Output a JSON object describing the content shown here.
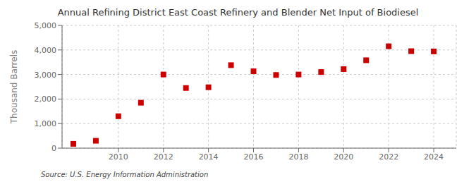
{
  "chart_data": {
    "type": "scatter",
    "title": "Annual Refining District East Coast Refinery and Blender Net Input of Biodiesel",
    "y_label": "Thousand Barrels",
    "annotations": [
      "Source: U.S. Energy Information Administration"
    ],
    "x": [
      2008,
      2009,
      2010,
      2011,
      2012,
      2013,
      2014,
      2015,
      2016,
      2017,
      2018,
      2019,
      2020,
      2021,
      2022,
      2023,
      2024
    ],
    "values": [
      175,
      300,
      1300,
      1850,
      3000,
      2450,
      2480,
      3380,
      3130,
      2980,
      3000,
      3100,
      3220,
      3580,
      4150,
      3950,
      3940
    ],
    "color": "#cc0000",
    "marker": "square",
    "xlim": [
      2007.5,
      2025.0
    ],
    "ylim": [
      0,
      5000
    ],
    "xticks": [
      2010,
      2012,
      2014,
      2016,
      2018,
      2020,
      2022,
      2024
    ],
    "yticks": [
      0,
      {
        "value": 1000,
        "label": "1,000"
      },
      {
        "value": 2000,
        "label": "2,000"
      },
      {
        "value": 3000,
        "label": "3,000"
      },
      {
        "value": 4000,
        "label": "4,000"
      },
      {
        "value": 5000,
        "label": "5,000"
      }
    ],
    "grid": true
  }
}
